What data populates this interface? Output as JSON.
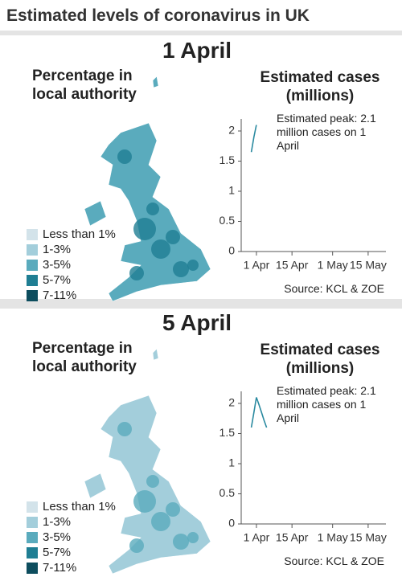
{
  "title": "Estimated levels of coronavirus in UK",
  "chart_data": [
    {
      "type": "line",
      "date": "1 April",
      "map_title": "Percentage in local authority",
      "map_legend": [
        {
          "label": "Less than 1%",
          "color": "#d3e3ea"
        },
        {
          "label": "1-3%",
          "color": "#a3cedb"
        },
        {
          "label": "3-5%",
          "color": "#5aabbd"
        },
        {
          "label": "5-7%",
          "color": "#1f7e93"
        },
        {
          "label": "7-11%",
          "color": "#0d4d5e"
        }
      ],
      "title": "Estimated cases (millions)",
      "annotation": "Estimated peak: 2.1 million cases on 1 April",
      "source": "Source: KCL & ZOE",
      "x": [
        -2,
        -1,
        0
      ],
      "values": [
        1.65,
        1.9,
        2.1
      ],
      "color": "#2a8aa0",
      "xlim": [
        -6,
        51
      ],
      "xticks": [
        {
          "value": 0,
          "label": "1 Apr"
        },
        {
          "value": 14,
          "label": "15 Apr"
        },
        {
          "value": 30,
          "label": "1 May"
        },
        {
          "value": 44,
          "label": "15 May"
        }
      ],
      "ylim": [
        0,
        2.2
      ],
      "yticks": [
        0,
        0.5,
        1,
        1.5,
        2
      ]
    },
    {
      "type": "line",
      "date": "5 April",
      "map_title": "Percentage in local authority",
      "map_legend": [
        {
          "label": "Less than 1%",
          "color": "#d3e3ea"
        },
        {
          "label": "1-3%",
          "color": "#a3cedb"
        },
        {
          "label": "3-5%",
          "color": "#5aabbd"
        },
        {
          "label": "5-7%",
          "color": "#1f7e93"
        },
        {
          "label": "7-11%",
          "color": "#0d4d5e"
        }
      ],
      "title": "Estimated cases (millions)",
      "annotation": "Estimated peak: 2.1 million cases on 1 April",
      "source": "Source: KCL & ZOE",
      "x": [
        -2,
        -1,
        0,
        1,
        2,
        3,
        4
      ],
      "values": [
        1.6,
        1.85,
        2.1,
        1.98,
        1.85,
        1.72,
        1.6
      ],
      "color": "#2a8aa0",
      "xlim": [
        -6,
        51
      ],
      "xticks": [
        {
          "value": 0,
          "label": "1 Apr"
        },
        {
          "value": 14,
          "label": "15 Apr"
        },
        {
          "value": 30,
          "label": "1 May"
        },
        {
          "value": 44,
          "label": "15 May"
        }
      ],
      "ylim": [
        0,
        2.2
      ],
      "yticks": [
        0,
        0.5,
        1,
        1.5,
        2
      ]
    }
  ]
}
